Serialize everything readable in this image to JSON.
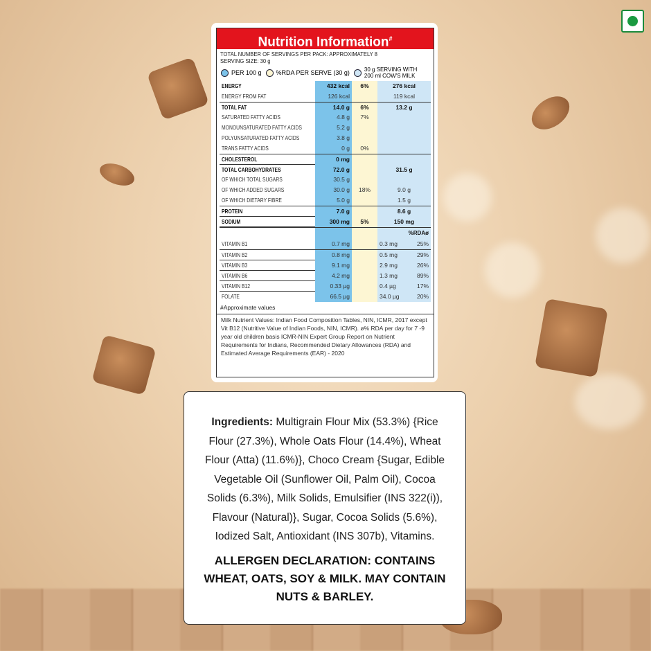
{
  "title": "Nutrition Information",
  "title_mark": "#",
  "servings": "TOTAL NUMBER OF SERVINGS PER PACK: APPROXIMATELY 8",
  "serving_size": "SERVING SIZE: 30 g",
  "legend": [
    "PER 100 g",
    "%RDA PER SERVE (30 g)",
    "30 g SERVING WITH 200 ml COW'S MILK"
  ],
  "colors": {
    "header": "#e3141d",
    "per100": "#7cc3ea",
    "rda": "#fdf6d3",
    "milk": "#cfe6f6"
  },
  "rows": [
    {
      "name": "ENERGY",
      "per100": "432 kcal",
      "rda": "6%",
      "milk": "276 kcal",
      "bold": true
    },
    {
      "name": "ENERGY FROM FAT",
      "per100": "126 kcal",
      "rda": "",
      "milk": "119 kcal"
    },
    {
      "name": "TOTAL FAT",
      "per100": "14.0 g",
      "rda": "6%",
      "milk": "13.2 g",
      "bold": true
    },
    {
      "name": "SATURATED FATTY ACIDS",
      "per100": "4.8 g",
      "rda": "7%",
      "milk": ""
    },
    {
      "name": "MONOUNSATURATED FATTY ACIDS",
      "per100": "5.2 g",
      "rda": "",
      "milk": ""
    },
    {
      "name": "POLYUNSATURATED FATTY ACIDS",
      "per100": "3.8 g",
      "rda": "",
      "milk": ""
    },
    {
      "name": "TRANS FATTY ACIDS",
      "per100": "0 g",
      "rda": "0%",
      "milk": ""
    },
    {
      "name": "CHOLESTEROL",
      "per100": "0 mg",
      "rda": "",
      "milk": "",
      "bold": true
    },
    {
      "name": "TOTAL CARBOHYDRATES",
      "per100": "72.0 g",
      "rda": "",
      "milk": "31.5 g",
      "bold": true
    },
    {
      "name": "OF WHICH TOTAL SUGARS",
      "per100": "30.5 g",
      "rda": "",
      "milk": ""
    },
    {
      "name": "OF WHICH ADDED SUGARS",
      "per100": "30.0 g",
      "rda": "18%",
      "milk": "9.0 g"
    },
    {
      "name": "OF WHICH DIETARY FIBRE",
      "per100": "5.0 g",
      "rda": "",
      "milk": "1.5 g"
    },
    {
      "name": "PROTEIN",
      "per100": "7.0 g",
      "rda": "",
      "milk": "8.6 g",
      "bold": true
    },
    {
      "name": "SODIUM",
      "per100": "300 mg",
      "rda": "5%",
      "milk": "150 mg",
      "bold": true
    }
  ],
  "rda_header": "%RDAø",
  "vitamins": [
    {
      "name": "VITAMIN B1",
      "per100": "0.7 mg",
      "milk": "0.3 mg",
      "rda": "25%"
    },
    {
      "name": "VITAMIN B2",
      "per100": "0.8 mg",
      "milk": "0.5 mg",
      "rda": "29%"
    },
    {
      "name": "VITAMIN B3",
      "per100": "9.1 mg",
      "milk": "2.9 mg",
      "rda": "26%"
    },
    {
      "name": "VITAMIN B6",
      "per100": "4.2 mg",
      "milk": "1.3 mg",
      "rda": "89%"
    },
    {
      "name": "VITAMIN B12",
      "per100": "0.33 µg",
      "milk": "0.4 µg",
      "rda": "17%"
    },
    {
      "name": "FOLATE",
      "per100": "66.5 µg",
      "milk": "34.0 µg",
      "rda": "20%"
    }
  ],
  "approx": "#Approximate values",
  "footnote": "Milk Nutrient Values: Indian Food Composition Tables, NIN, ICMR, 2017 except Vit B12 (Nutritive Value of Indian Foods, NIN, ICMR). ø% RDA per day for 7 -9 year old children basis ICMR-NIN Expert Group Report on Nutrient Requirements for Indians, Recommended Dietary Allowances (RDA) and Estimated Average Requirements (EAR) - 2020",
  "ingredients_label": "Ingredients:",
  "ingredients": " Multigrain Flour Mix (53.3%) {Rice Flour (27.3%), Whole Oats Flour (14.4%), Wheat Flour (Atta) (11.6%)}, Choco Cream {Sugar, Edible Vegetable Oil (Sunflower Oil, Palm Oil), Cocoa Solids (6.3%), Milk Solids, Emulsifier (INS 322(i)), Flavour (Natural)}, Sugar, Cocoa Solids (5.6%), Iodized Salt, Antioxidant (INS 307b), Vitamins.",
  "allergen": "ALLERGEN DECLARATION: CONTAINS WHEAT, OATS, SOY & MILK. MAY CONTAIN NUTS & BARLEY.",
  "veg_mark": "veg-mark-icon"
}
